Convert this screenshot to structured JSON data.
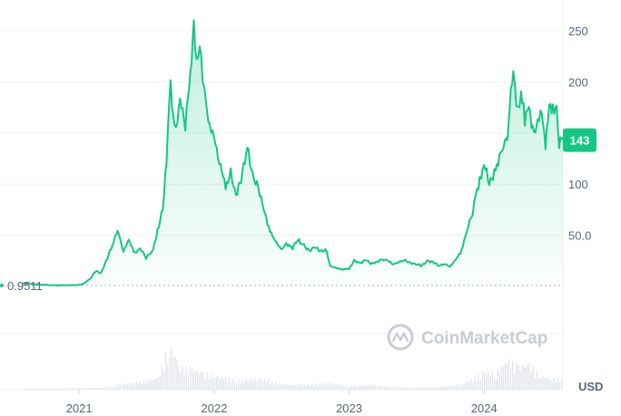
{
  "chart_data": {
    "type": "area",
    "ylabel": "",
    "xlabel": "",
    "unit": "USD",
    "yscale": "linear",
    "ylim": [
      0,
      280
    ],
    "yticks": [
      50,
      100,
      150,
      200,
      250
    ],
    "ytick_labels": [
      "50.0",
      "100",
      "",
      "200",
      "250"
    ],
    "xticks": [
      {
        "date": "2021-01-01",
        "label": "2021"
      },
      {
        "date": "2022-01-01",
        "label": "2022"
      },
      {
        "date": "2023-01-01",
        "label": "2023"
      },
      {
        "date": "2024-01-01",
        "label": "2024"
      }
    ],
    "start_value": 0.9511,
    "start_value_label": "0.9511",
    "current_value": 143,
    "current_value_label": "143",
    "line_color": "#16c784",
    "watermark": "CoinMarketCap",
    "grid": true,
    "series": [
      {
        "x": [
          "2020-08-01",
          "2020-09-01",
          "2020-10-01",
          "2020-11-01",
          "2020-12-01",
          "2021-01-01",
          "2021-01-15",
          "2021-02-01",
          "2021-02-15",
          "2021-03-01",
          "2021-03-15",
          "2021-04-01",
          "2021-04-15",
          "2021-05-01",
          "2021-05-15",
          "2021-06-01",
          "2021-06-15",
          "2021-07-01",
          "2021-07-20",
          "2021-08-01",
          "2021-08-15",
          "2021-08-25",
          "2021-09-05",
          "2021-09-09",
          "2021-09-20",
          "2021-10-01",
          "2021-10-15",
          "2021-11-01",
          "2021-11-07",
          "2021-11-15",
          "2021-11-23",
          "2021-12-01",
          "2021-12-10",
          "2021-12-20",
          "2022-01-01",
          "2022-01-15",
          "2022-02-01",
          "2022-02-15",
          "2022-03-01",
          "2022-03-15",
          "2022-04-01",
          "2022-04-15",
          "2022-05-01",
          "2022-05-15",
          "2022-06-01",
          "2022-06-15",
          "2022-07-01",
          "2022-07-15",
          "2022-08-01",
          "2022-08-15",
          "2022-09-01",
          "2022-09-15",
          "2022-10-01",
          "2022-10-15",
          "2022-11-01",
          "2022-11-10",
          "2022-11-25",
          "2022-12-15",
          "2023-01-01",
          "2023-01-15",
          "2023-02-01",
          "2023-02-15",
          "2023-03-01",
          "2023-03-15",
          "2023-04-01",
          "2023-04-15",
          "2023-05-01",
          "2023-05-15",
          "2023-06-01",
          "2023-06-15",
          "2023-07-01",
          "2023-07-15",
          "2023-08-01",
          "2023-08-15",
          "2023-09-01",
          "2023-09-15",
          "2023-10-01",
          "2023-10-15",
          "2023-11-01",
          "2023-11-15",
          "2023-12-01",
          "2023-12-10",
          "2023-12-20",
          "2024-01-01",
          "2024-01-15",
          "2024-02-01",
          "2024-02-15",
          "2024-03-01",
          "2024-03-05",
          "2024-03-10",
          "2024-03-20",
          "2024-04-01",
          "2024-04-10",
          "2024-04-20",
          "2024-05-01",
          "2024-05-15",
          "2024-05-25",
          "2024-06-05",
          "2024-06-15",
          "2024-06-25",
          "2024-07-05",
          "2024-07-15",
          "2024-07-22",
          "2024-08-01"
        ],
        "y": [
          3,
          2,
          1.5,
          1,
          1.2,
          1.3,
          3,
          8,
          15,
          13,
          25,
          40,
          55,
          35,
          45,
          32,
          38,
          28,
          35,
          55,
          75,
          120,
          205,
          175,
          150,
          185,
          160,
          215,
          250,
          225,
          240,
          200,
          180,
          155,
          145,
          125,
          95,
          110,
          90,
          105,
          135,
          110,
          95,
          75,
          55,
          45,
          35,
          42,
          38,
          45,
          40,
          35,
          38,
          35,
          35,
          20,
          18,
          17,
          17,
          25,
          23,
          26,
          22,
          24,
          26,
          25,
          22,
          24,
          25,
          23,
          22,
          20,
          25,
          24,
          20,
          22,
          20,
          25,
          35,
          55,
          72,
          88,
          105,
          120,
          100,
          115,
          130,
          140,
          150,
          180,
          205,
          170,
          195,
          160,
          175,
          150,
          160,
          170,
          140,
          175,
          170,
          180,
          140,
          143
        ]
      }
    ],
    "volume": {
      "x": [
        "2020-08-01",
        "2021-03-01",
        "2021-05-01",
        "2021-08-01",
        "2021-09-01",
        "2021-10-01",
        "2021-11-01",
        "2021-12-01",
        "2022-01-01",
        "2022-03-01",
        "2022-05-01",
        "2022-07-01",
        "2022-09-01",
        "2022-11-01",
        "2023-01-01",
        "2023-03-01",
        "2023-05-01",
        "2023-07-01",
        "2023-09-01",
        "2023-11-01",
        "2023-12-15",
        "2024-01-01",
        "2024-02-01",
        "2024-03-01",
        "2024-04-01",
        "2024-05-01",
        "2024-06-01",
        "2024-07-01",
        "2024-08-01"
      ],
      "level": [
        0.02,
        0.04,
        0.12,
        0.25,
        0.95,
        0.5,
        0.45,
        0.35,
        0.3,
        0.2,
        0.25,
        0.12,
        0.1,
        0.15,
        0.08,
        0.1,
        0.06,
        0.05,
        0.06,
        0.12,
        0.3,
        0.4,
        0.35,
        0.65,
        0.5,
        0.55,
        0.3,
        0.25,
        0.2
      ]
    }
  }
}
